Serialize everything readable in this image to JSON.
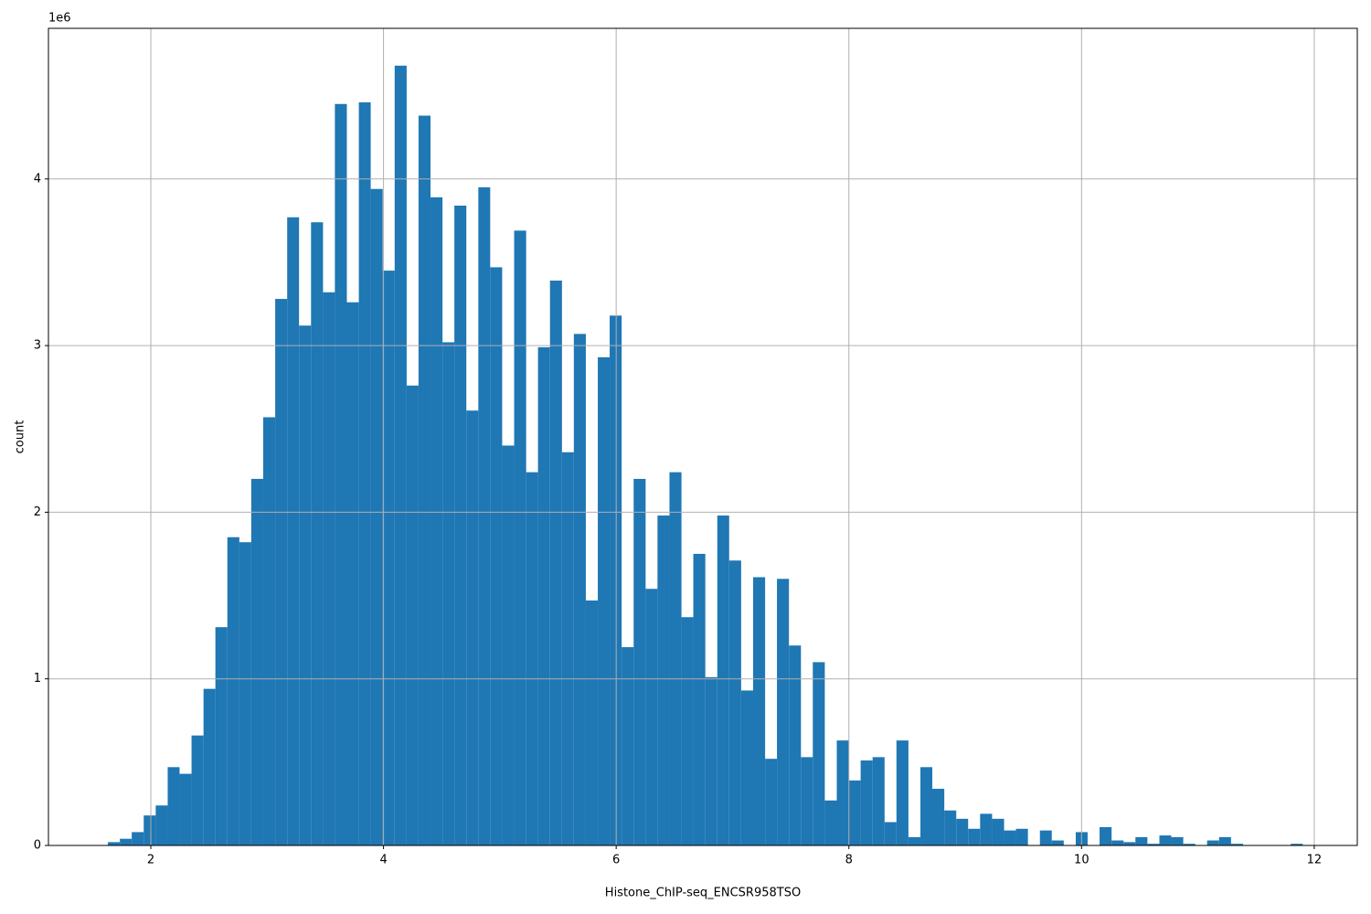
{
  "chart_data": {
    "type": "histogram",
    "xlabel": "Histone_ChIP-seq_ENCSR958TSO",
    "ylabel": "count",
    "y_offset_label": "1e6",
    "color": "#1f77b4",
    "grid": true,
    "xlim": [
      1.12,
      12.37
    ],
    "ylim": [
      0,
      4.904
    ],
    "xticks": [
      2,
      4,
      6,
      8,
      10,
      12
    ],
    "yticks": [
      0,
      1,
      2,
      3,
      4
    ],
    "bins": [
      1.631,
      1.734,
      1.836,
      1.939,
      2.042,
      2.145,
      2.247,
      2.35,
      2.453,
      2.555,
      2.658,
      2.761,
      2.863,
      2.966,
      3.069,
      3.172,
      3.274,
      3.377,
      3.48,
      3.582,
      3.685,
      3.788,
      3.89,
      3.993,
      4.096,
      4.199,
      4.301,
      4.404,
      4.507,
      4.609,
      4.712,
      4.815,
      4.917,
      5.02,
      5.123,
      5.226,
      5.328,
      5.431,
      5.534,
      5.636,
      5.739,
      5.842,
      5.944,
      6.047,
      6.15,
      6.253,
      6.355,
      6.458,
      6.561,
      6.663,
      6.766,
      6.869,
      6.971,
      7.074,
      7.177,
      7.28,
      7.382,
      7.485,
      7.588,
      7.69,
      7.793,
      7.896,
      7.998,
      8.101,
      8.204,
      8.307,
      8.409,
      8.512,
      8.615,
      8.717,
      8.82,
      8.923,
      9.025,
      9.128,
      9.231,
      9.334,
      9.436,
      9.539,
      9.642,
      9.744,
      9.847,
      9.95,
      10.052,
      10.155,
      10.258,
      10.361,
      10.463,
      10.566,
      10.669,
      10.771,
      10.874,
      10.977,
      11.079,
      11.182,
      11.285,
      11.388,
      11.49,
      11.593,
      11.696,
      11.798,
      11.901
    ],
    "values": [
      0.02,
      0.04,
      0.08,
      0.18,
      0.24,
      0.47,
      0.43,
      0.66,
      0.94,
      1.31,
      1.85,
      1.82,
      2.2,
      2.57,
      3.28,
      3.77,
      3.12,
      3.74,
      3.32,
      4.45,
      3.26,
      4.46,
      3.94,
      3.45,
      4.68,
      2.76,
      4.38,
      3.89,
      3.02,
      3.84,
      2.61,
      3.95,
      3.47,
      2.4,
      3.69,
      2.24,
      2.99,
      3.39,
      2.36,
      3.07,
      1.47,
      2.93,
      3.18,
      1.19,
      2.2,
      1.54,
      1.98,
      2.24,
      1.37,
      1.75,
      1.01,
      1.98,
      1.71,
      0.93,
      1.61,
      0.52,
      1.6,
      1.2,
      0.53,
      1.1,
      0.27,
      0.63,
      0.39,
      0.51,
      0.53,
      0.14,
      0.63,
      0.05,
      0.47,
      0.34,
      0.21,
      0.16,
      0.1,
      0.19,
      0.16,
      0.09,
      0.1,
      0,
      0.09,
      0.03,
      0,
      0.08,
      0,
      0.11,
      0.03,
      0.02,
      0.05,
      0.01,
      0.06,
      0.05,
      0.01,
      0,
      0.03,
      0.05,
      0.01,
      0,
      0,
      0,
      0,
      0.01
    ]
  }
}
